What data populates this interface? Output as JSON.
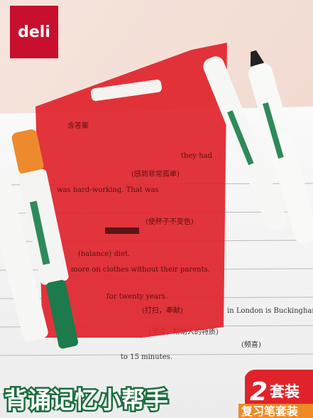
{
  "brand": "deli",
  "headline": "背诵记忆小帮手",
  "badge": {
    "count": "2",
    "unit": "套装"
  },
  "subtitle": "复习笔套装",
  "book_text": [
    "含答案",
    "(感到非常孤单)",
    "was hard-working. That was",
    "they had",
    "(使杯子不变色)",
    "(balance) diet.",
    "more on clothes without their parents.",
    "for twenty years.",
    "(打扫，奉献)",
    "in London is Buckingham Palace.",
    "(坚点，帮助人的特质)",
    "to 15 minutes.",
    "(频喜)"
  ]
}
